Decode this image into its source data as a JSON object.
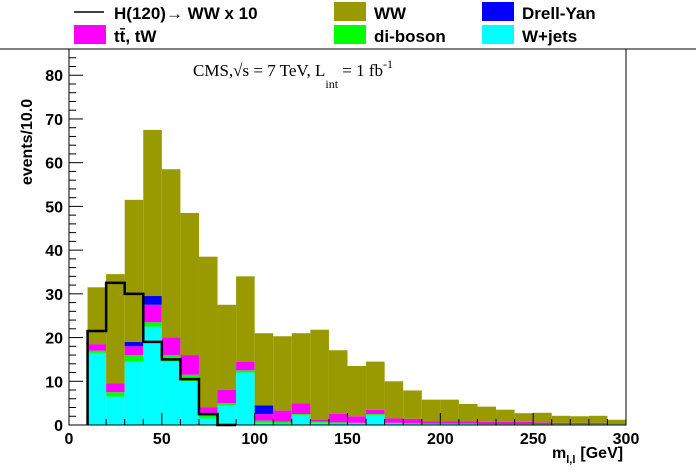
{
  "chart_data": {
    "type": "bar",
    "stacked": true,
    "xlabel": "m",
    "xlabel_sub": "l,l",
    "xlabel_unit": "[GeV]",
    "ylabel": "events/10.0",
    "xlim": [
      0,
      300
    ],
    "ylim": [
      0,
      86
    ],
    "x_ticks": [
      0,
      50,
      100,
      150,
      200,
      250,
      300
    ],
    "y_ticks": [
      0,
      10,
      20,
      30,
      40,
      50,
      60,
      70,
      80
    ],
    "grid": false,
    "legend_position": "top",
    "bin_width": 10,
    "x": [
      10,
      20,
      30,
      40,
      50,
      60,
      70,
      80,
      90,
      100,
      110,
      120,
      130,
      140,
      150,
      160,
      170,
      180,
      190,
      200,
      210,
      220,
      230,
      240,
      250,
      260,
      270,
      280,
      290
    ],
    "series": [
      {
        "name": "W+jets",
        "color": "#00ffff",
        "values": [
          16.5,
          6.5,
          14.5,
          22.5,
          14.5,
          10.0,
          1.5,
          4.5,
          12.0,
          0.5,
          0.3,
          2.2,
          0.5,
          0.3,
          0.3,
          2.2,
          0.3,
          0.2,
          0.2,
          0.2,
          0.2,
          0.1,
          0.1,
          0.1,
          0.1,
          0.1,
          0.1,
          0.1,
          0.1
        ]
      },
      {
        "name": "di-boson",
        "color": "#00ff00",
        "values": [
          0.5,
          1.0,
          1.5,
          1.0,
          1.5,
          1.5,
          1.0,
          0.5,
          0.5,
          0.5,
          0.5,
          0.3,
          0.3,
          0.3,
          0.2,
          0.3,
          0.2,
          0.2,
          0.1,
          0.1,
          0.1,
          0.1,
          0.1,
          0.1,
          0.1,
          0.1,
          0.1,
          0.1,
          0.1
        ]
      },
      {
        "name": "tt̄, tW",
        "color": "#ff00ff",
        "values": [
          1.5,
          2.0,
          2.0,
          4.0,
          4.0,
          4.5,
          1.5,
          3.0,
          2.0,
          1.5,
          2.5,
          2.5,
          0.5,
          2.0,
          1.5,
          1.0,
          1.0,
          1.0,
          0.5,
          0.5,
          0.5,
          0.5,
          0.5,
          0.5,
          0.4,
          0.3,
          0.3,
          0.3,
          0.2
        ]
      },
      {
        "name": "Drell-Yan",
        "color": "#0000ff",
        "values": [
          0.0,
          0.0,
          1.0,
          2.0,
          0.0,
          0.0,
          0.0,
          0.0,
          0.0,
          2.0,
          0.0,
          0.0,
          0.0,
          0.0,
          0.0,
          0.0,
          0.0,
          0.0,
          0.0,
          0.0,
          0.0,
          0.0,
          0.0,
          0.0,
          0.0,
          0.0,
          0.0,
          0.0,
          0.0
        ]
      },
      {
        "name": "WW",
        "color": "#999900",
        "values": [
          13.0,
          25.0,
          32.5,
          38.0,
          38.5,
          32.5,
          34.5,
          19.5,
          19.5,
          16.5,
          17.0,
          16.0,
          20.5,
          14.5,
          11.5,
          11.0,
          8.5,
          6.5,
          5.0,
          5.0,
          4.0,
          3.5,
          2.8,
          2.0,
          2.2,
          1.6,
          1.5,
          1.6,
          0.8
        ]
      }
    ],
    "signal": {
      "name": "H(120)→ WW x 10",
      "color": "#000000",
      "x": [
        10,
        20,
        30,
        40,
        50,
        60,
        70,
        80
      ],
      "values": [
        21.5,
        32.5,
        30.0,
        19.0,
        15.0,
        10.5,
        2.5,
        0.0
      ]
    },
    "annotation": {
      "prefix": "CMS,",
      "sqrt": "√s",
      "energy": " = 7 TeV, L",
      "sub": "int",
      "lumi": " = 1 fb",
      "sup": "-1"
    }
  },
  "legend": {
    "items": [
      {
        "name": "H(120)→ WW x 10",
        "kind": "line",
        "color": "#000000"
      },
      {
        "name": "WW",
        "kind": "box",
        "color": "#999900"
      },
      {
        "name": "Drell-Yan",
        "kind": "box",
        "color": "#0000ff"
      },
      {
        "name": "tt̄, tW",
        "kind": "box",
        "color": "#ff00ff"
      },
      {
        "name": "di-boson",
        "kind": "box",
        "color": "#00ff00"
      },
      {
        "name": "W+jets",
        "kind": "box",
        "color": "#00ffff"
      }
    ]
  }
}
